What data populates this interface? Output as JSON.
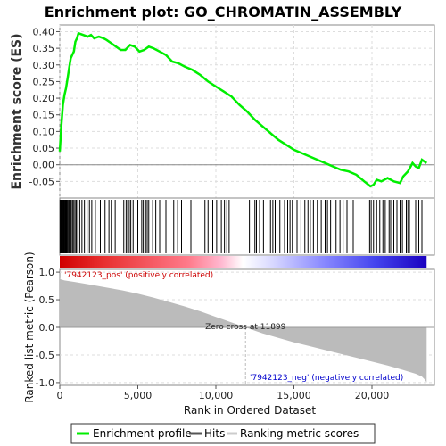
{
  "chart_data": {
    "type": "line",
    "title": "Enrichment plot: GO_CHROMATIN_ASSEMBLY",
    "top_panel": {
      "ylabel": "Enrichment score (ES)",
      "ylim": [
        -0.1,
        0.42
      ],
      "yticks": [
        "0.40",
        "0.35",
        "0.30",
        "0.25",
        "0.20",
        "0.15",
        "0.10",
        "0.05",
        "0.00",
        "-0.05"
      ],
      "series": [
        {
          "name": "Enrichment profile",
          "color": "#00ee00",
          "x": [
            0,
            100,
            200,
            300,
            400,
            500,
            600,
            700,
            800,
            900,
            1000,
            1100,
            1200,
            1500,
            1800,
            2000,
            2200,
            2500,
            2800,
            3000,
            3300,
            3600,
            3900,
            4200,
            4500,
            4800,
            5100,
            5400,
            5700,
            6000,
            6400,
            6800,
            7200,
            7600,
            8000,
            8500,
            9000,
            9500,
            10000,
            10500,
            11000,
            11500,
            12000,
            12500,
            13000,
            13500,
            14000,
            14500,
            15000,
            15500,
            16000,
            16500,
            17000,
            17500,
            18000,
            18500,
            19000,
            19500,
            19900,
            20100,
            20300,
            20600,
            21000,
            21400,
            21800,
            22000,
            22300,
            22600,
            22800,
            23000,
            23200,
            23500
          ],
          "y": [
            0.04,
            0.12,
            0.18,
            0.21,
            0.23,
            0.26,
            0.29,
            0.32,
            0.33,
            0.34,
            0.37,
            0.38,
            0.395,
            0.39,
            0.385,
            0.39,
            0.38,
            0.385,
            0.38,
            0.375,
            0.365,
            0.355,
            0.345,
            0.345,
            0.36,
            0.355,
            0.34,
            0.345,
            0.355,
            0.35,
            0.34,
            0.33,
            0.31,
            0.305,
            0.295,
            0.285,
            0.27,
            0.25,
            0.235,
            0.22,
            0.205,
            0.18,
            0.16,
            0.135,
            0.115,
            0.095,
            0.075,
            0.06,
            0.045,
            0.035,
            0.025,
            0.015,
            0.005,
            -0.005,
            -0.015,
            -0.02,
            -0.03,
            -0.05,
            -0.065,
            -0.06,
            -0.045,
            -0.05,
            -0.04,
            -0.05,
            -0.055,
            -0.035,
            -0.02,
            0.005,
            -0.005,
            -0.01,
            0.015,
            0.005
          ]
        }
      ]
    },
    "hits": {
      "name": "Hits",
      "x": [
        20,
        60,
        110,
        150,
        190,
        230,
        280,
        320,
        360,
        400,
        450,
        500,
        560,
        610,
        680,
        740,
        820,
        900,
        980,
        1060,
        1150,
        1280,
        1420,
        1580,
        1750,
        1900,
        2050,
        2280,
        2600,
        2900,
        3150,
        3300,
        3550,
        4100,
        4250,
        4350,
        4450,
        4550,
        4700,
        5000,
        5250,
        5350,
        5500,
        5600,
        5700,
        5950,
        6150,
        6400,
        6800,
        7000,
        7300,
        7550,
        7800,
        8400,
        9300,
        9500,
        9800,
        10050,
        10200,
        10350,
        10550,
        10700,
        10850,
        11800,
        12150,
        12500,
        12600,
        12800,
        13050,
        13500,
        13650,
        13800,
        14100,
        14400,
        14600,
        14750,
        14900,
        15200,
        15450,
        15700,
        15900,
        16050,
        16250,
        16500,
        16750,
        17000,
        17150,
        17350,
        17700,
        17950,
        18150,
        18400,
        18800,
        19850,
        19950,
        20100,
        20300,
        20500,
        20700,
        20850,
        21100,
        21200,
        21400,
        21600,
        21800,
        21950,
        22200,
        22300,
        22400,
        22800,
        23000,
        23200
      ]
    },
    "ranking_bar": {
      "pos_color": "#ff0000",
      "neg_color": "#0000ff",
      "zero_cross_color": "#ffffff"
    },
    "bottom_panel": {
      "ylabel": "Ranked list metric (Pearson)",
      "xlabel": "Rank in Ordered Dataset",
      "ylim": [
        -1.05,
        1.05
      ],
      "yticks": [
        "1.0",
        "0.5",
        "0.0",
        "-0.5",
        "-1.0"
      ],
      "xlim": [
        0,
        24000
      ],
      "xticks": [
        "0",
        "5,000",
        "10,000",
        "15,000",
        "20,000"
      ],
      "xtick_values": [
        0,
        5000,
        10000,
        15000,
        20000
      ],
      "x": [
        0,
        50,
        300,
        1000,
        2000,
        3000,
        4000,
        5000,
        6000,
        7000,
        8000,
        9000,
        10000,
        11000,
        11899,
        12500,
        13000,
        14000,
        15000,
        16000,
        17000,
        18000,
        19000,
        20000,
        21000,
        22000,
        22800,
        23200,
        23400,
        23500
      ],
      "y": [
        0.9,
        0.87,
        0.85,
        0.82,
        0.77,
        0.72,
        0.67,
        0.61,
        0.54,
        0.46,
        0.38,
        0.29,
        0.19,
        0.09,
        0.0,
        -0.06,
        -0.11,
        -0.19,
        -0.27,
        -0.34,
        -0.41,
        -0.48,
        -0.55,
        -0.62,
        -0.69,
        -0.77,
        -0.84,
        -0.89,
        -0.95,
        -1.0
      ],
      "fill_color": "#bbbbbb"
    },
    "annotations": {
      "pos_label": "'7942123_pos' (positively correlated)",
      "neg_label": "'7942123_neg' (negatively correlated)",
      "zero_cross": "Zero cross at 11899",
      "zero_cross_rank": 11899
    },
    "legend": {
      "items": [
        {
          "label": "Enrichment profile",
          "color": "#00ee00"
        },
        {
          "label": "Hits",
          "color": "#555555"
        },
        {
          "label": "Ranking metric scores",
          "color": "#cccccc"
        }
      ],
      "placement": "bottom"
    },
    "grid": true
  }
}
